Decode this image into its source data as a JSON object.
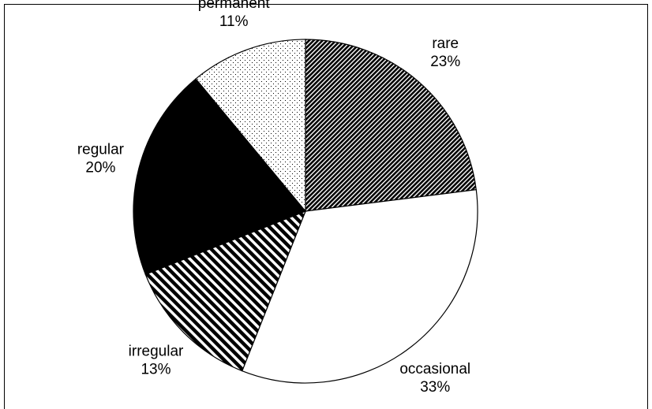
{
  "chart_data": {
    "type": "pie",
    "categories": [
      "rare",
      "occasional",
      "irregular",
      "regular",
      "permanent"
    ],
    "values": [
      23,
      33,
      13,
      20,
      11
    ],
    "value_labels": [
      "23%",
      "33%",
      "13%",
      "20%",
      "11%"
    ],
    "patterns": [
      "dense-hatch",
      "white",
      "wide-hatch",
      "black",
      "dots"
    ]
  }
}
